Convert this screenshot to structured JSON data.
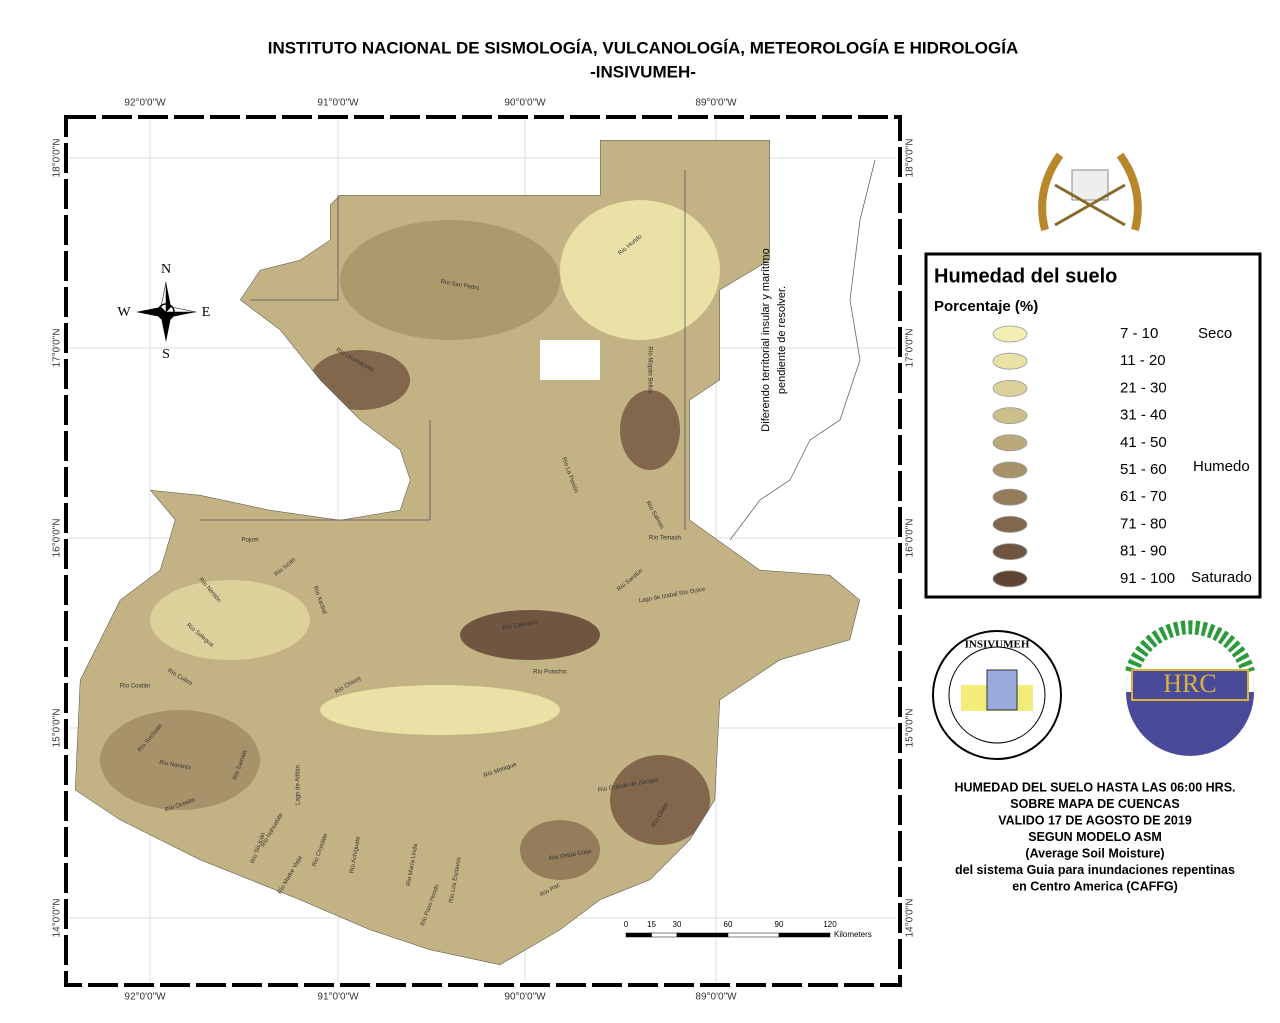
{
  "header": {
    "line1": "INSTITUTO NACIONAL DE SISMOLOGÍA, VULCANOLOGÍA, METEOROLOGÍA E HIDROLOGÍA",
    "line2": "-INSIVUMEH-"
  },
  "map": {
    "lon_labels": [
      "92°0'0\"W",
      "91°0'0\"W",
      "90°0'0\"W",
      "89°0'0\"W"
    ],
    "lat_labels": [
      "18°0'0\"N",
      "17°0'0\"N",
      "16°0'0\"N",
      "15°0'0\"N",
      "14°0'0\"N"
    ],
    "compass": {
      "n": "N",
      "s": "S",
      "e": "E",
      "w": "W"
    },
    "dispute_note": [
      "Diferendo territorial insular y marítimo",
      "pendiente de resolver."
    ],
    "rivers": [
      "Río San Pedro",
      "Río Usumacinta",
      "Río Hondo",
      "Río Mopán Belice",
      "Río La Pasión",
      "Río Salinas",
      "Río Temash",
      "Pojom",
      "Río Ixcán",
      "Río Nentón",
      "Río Xacbal",
      "Río Chixoy",
      "Río Sarstún",
      "Lago de Izabal Río Dulce",
      "Río Cahabón",
      "Río Polochic",
      "Río Selegua",
      "Río Cuilco",
      "Río Coatán",
      "Río Suchiate",
      "Río Naranjo",
      "Río Ocosito",
      "Río Samalá",
      "Lago de Atitlán",
      "Río Sis Icán",
      "Río Nahualate",
      "Río Madre Vieja",
      "Río Coyolate",
      "Río Achiguate",
      "Río María Linda",
      "Río Los Esclavos",
      "Río Paso Hondo",
      "Río Paz",
      "Río Ostúa Güija",
      "Río Olopa",
      "Río Grande de Zacapa",
      "Río Motagua"
    ],
    "scale": {
      "ticks": [
        0,
        15,
        30,
        60,
        90,
        120
      ],
      "unit": "Kilometers"
    }
  },
  "legend": {
    "title": "Humedad del suelo",
    "subtitle": "Porcentaje (%)",
    "items": [
      {
        "label": "7 - 10",
        "color": "#f3eeb2"
      },
      {
        "label": "11 - 20",
        "color": "#e9e1a6"
      },
      {
        "label": "21 - 30",
        "color": "#dcd19a"
      },
      {
        "label": "31 - 40",
        "color": "#cdbf8a"
      },
      {
        "label": "41 - 50",
        "color": "#bba97a"
      },
      {
        "label": "51 - 60",
        "color": "#a8926a"
      },
      {
        "label": "61 - 70",
        "color": "#957c5b"
      },
      {
        "label": "71 - 80",
        "color": "#82674d"
      },
      {
        "label": "81 - 90",
        "color": "#705540"
      },
      {
        "label": "91 - 100",
        "color": "#5e4433"
      }
    ],
    "classes": [
      "Seco",
      "Humedo",
      "Saturado"
    ]
  },
  "logos": {
    "insivumeh": "INSIVUMEH",
    "hrc": "HRC"
  },
  "info": [
    "HUMEDAD DEL SUELO HASTA LAS 06:00 HRS.",
    "SOBRE MAPA DE CUENCAS",
    "VALIDO 17 DE AGOSTO DE 2019",
    "SEGUN MODELO ASM",
    "(Average Soil Moisture)",
    "del sistema Guia  para inundaciones repentinas",
    "en Centro America (CAFFG)"
  ]
}
